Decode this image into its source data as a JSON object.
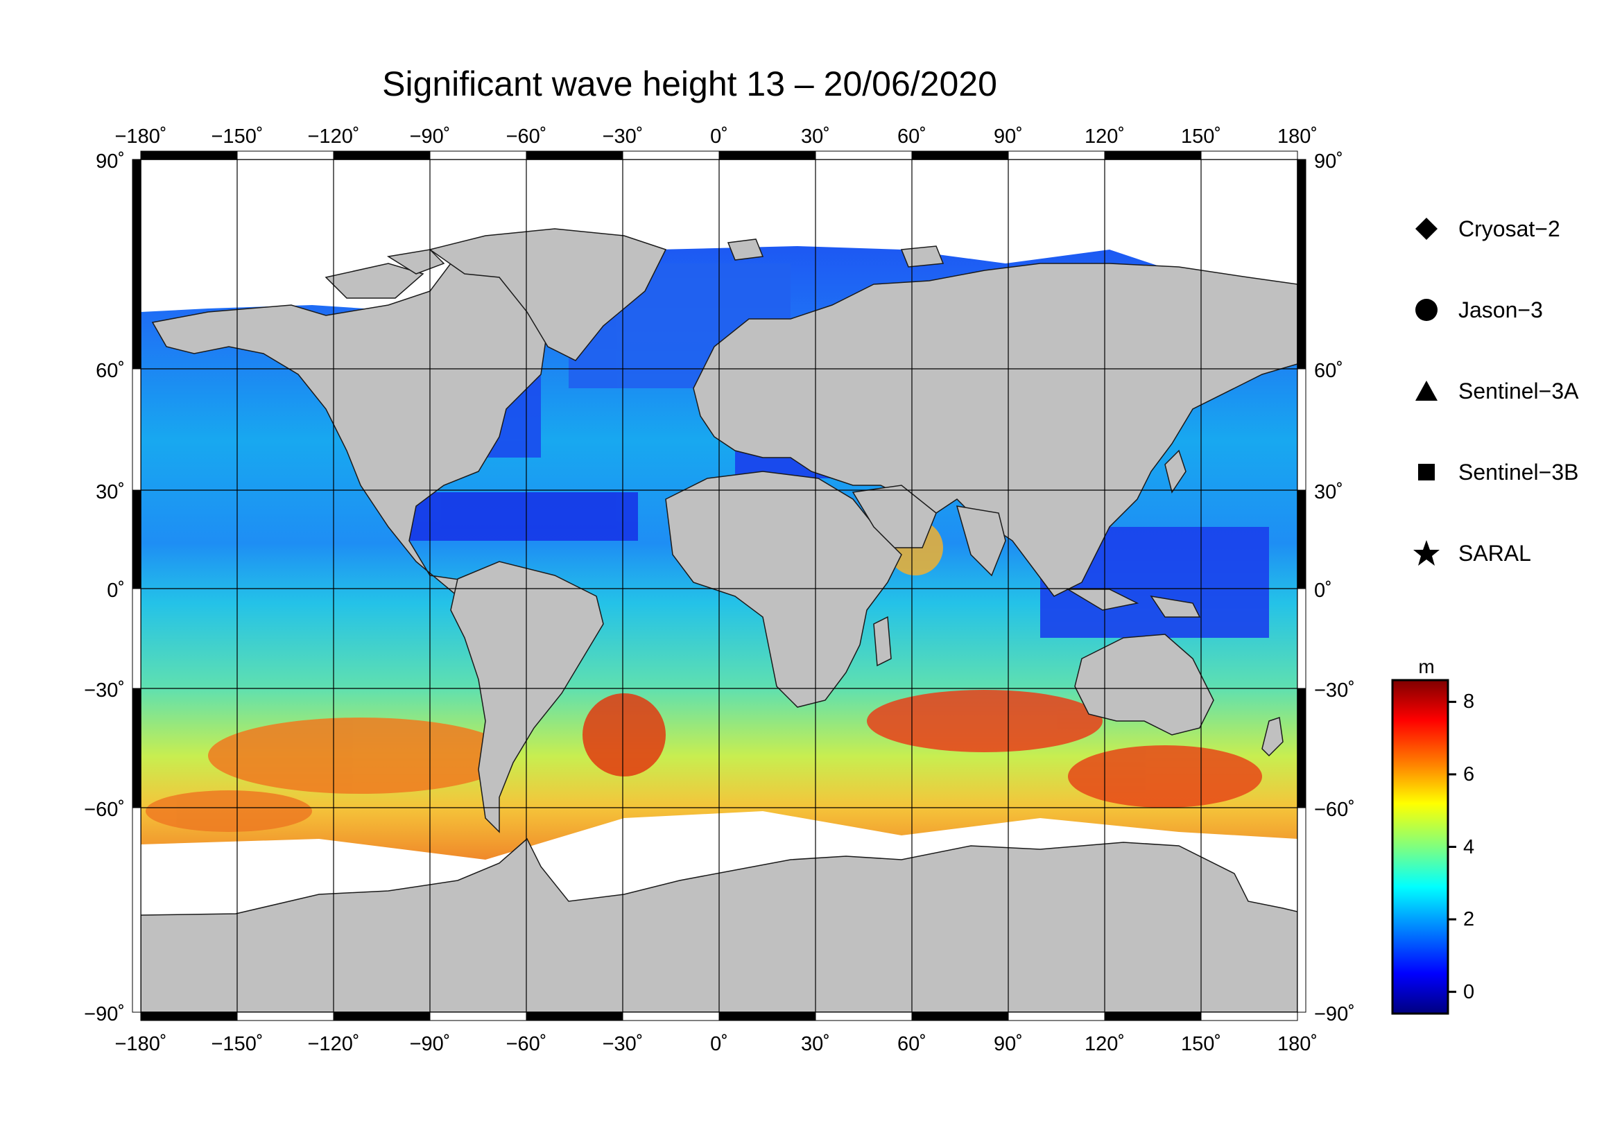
{
  "title": "Significant wave height 13 – 20/06/2020",
  "map": {
    "lon_labels": [
      "−180˚",
      "−150˚",
      "−120˚",
      "−90˚",
      "−60˚",
      "−30˚",
      "0˚",
      "30˚",
      "60˚",
      "90˚",
      "120˚",
      "150˚",
      "180˚"
    ],
    "lat_labels": [
      "90˚",
      "60˚",
      "30˚",
      "0˚",
      "−30˚",
      "−60˚",
      "−90˚"
    ],
    "lon_values": [
      -180,
      -150,
      -120,
      -90,
      -60,
      -30,
      0,
      30,
      60,
      90,
      120,
      150,
      180
    ],
    "lat_values": [
      90,
      60,
      30,
      0,
      -30,
      -60,
      -90
    ],
    "land_color": "#c0c0c0",
    "ice_color": "#ffffff"
  },
  "legend": [
    {
      "symbol": "diamond",
      "label": "Cryosat−2"
    },
    {
      "symbol": "circle",
      "label": "Jason−3"
    },
    {
      "symbol": "triangle",
      "label": "Sentinel−3A"
    },
    {
      "symbol": "square",
      "label": "Sentinel−3B"
    },
    {
      "symbol": "star",
      "label": "SARAL"
    }
  ],
  "colorbar": {
    "unit": "m",
    "ticks": [
      "8",
      "6",
      "4",
      "2",
      "0"
    ],
    "tick_values": [
      8,
      6,
      4,
      2,
      0
    ],
    "range": [
      -0.6,
      8.6
    ],
    "colors": [
      "#00007f",
      "#0000ff",
      "#007fff",
      "#00ffff",
      "#7fff7f",
      "#ffff00",
      "#ff7f00",
      "#ff0000",
      "#7f0000"
    ]
  }
}
